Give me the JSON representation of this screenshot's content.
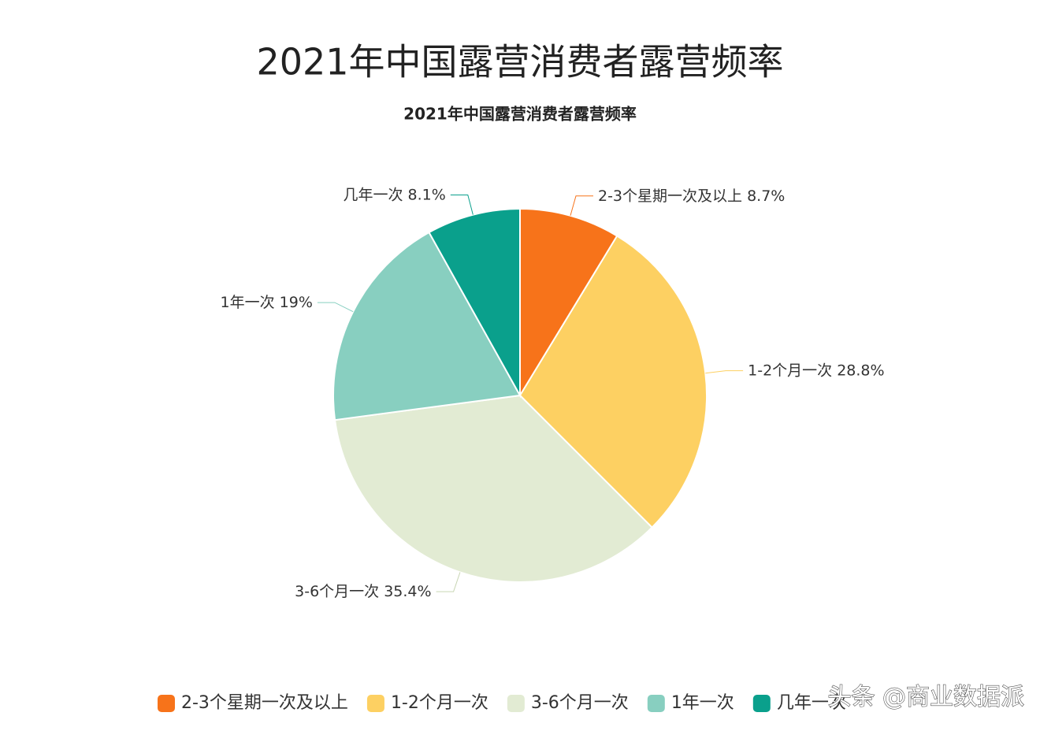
{
  "chart_data": {
    "type": "pie",
    "title": "2021年中国露营消费者露营频率",
    "subtitle": "2021年中国露营消费者露营频率",
    "categories": [
      "2-3个星期一次及以上",
      "1-2个月一次",
      "3-6个月一次",
      "1年一次",
      "几年一次"
    ],
    "values": [
      8.7,
      28.8,
      35.4,
      19,
      8.1
    ],
    "value_labels": [
      "8.7%",
      "28.8%",
      "35.4%",
      "19%",
      "8.1%"
    ],
    "colors": [
      "#f7731a",
      "#fdd062",
      "#e2ebd3",
      "#88cfc0",
      "#0aa08c"
    ],
    "legend": "bottom"
  },
  "watermark": "头条 @商业数据派"
}
